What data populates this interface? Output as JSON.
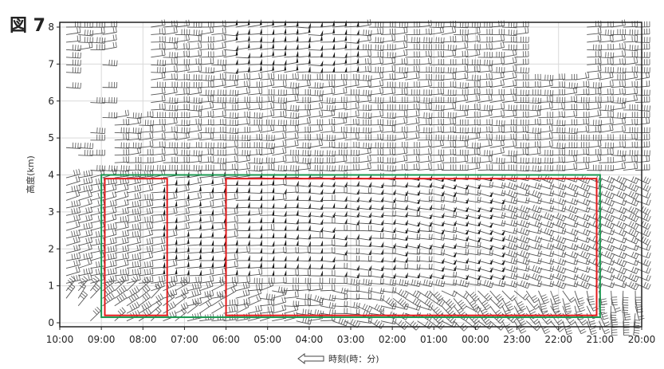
{
  "figure_label": "図 7",
  "chart_data": {
    "type": "wind-barb time-height section",
    "xlabel": "時刻(時：分)",
    "xlabel_arrow": "left",
    "ylabel": "高度(km)",
    "x_ticks": [
      "10:00",
      "09:00",
      "08:00",
      "07:00",
      "06:00",
      "05:00",
      "04:00",
      "03:00",
      "02:00",
      "01:00",
      "00:00",
      "23:00",
      "22:00",
      "21:00",
      "20:00"
    ],
    "y_ticks": [
      "0",
      "1",
      "2",
      "3",
      "4",
      "5",
      "6",
      "7",
      "8"
    ],
    "ylim": [
      0,
      8
    ],
    "grid": true,
    "barb_color": "#555555",
    "pennant_color": "#111111",
    "highlight_boxes": [
      {
        "name": "green-box",
        "color": "#1a9850",
        "x_from": "09:00",
        "x_to": "21:00",
        "y_range_km": [
          0.15,
          4.0
        ]
      },
      {
        "name": "red-box-left",
        "color": "#e41a1c",
        "x_from": "08:55",
        "x_to": "07:25",
        "y_range_km": [
          0.2,
          3.9
        ]
      },
      {
        "name": "red-box-right",
        "color": "#e41a1c",
        "x_from": "06:00",
        "x_to": "21:05",
        "y_range_km": [
          0.2,
          3.9
        ]
      }
    ]
  }
}
